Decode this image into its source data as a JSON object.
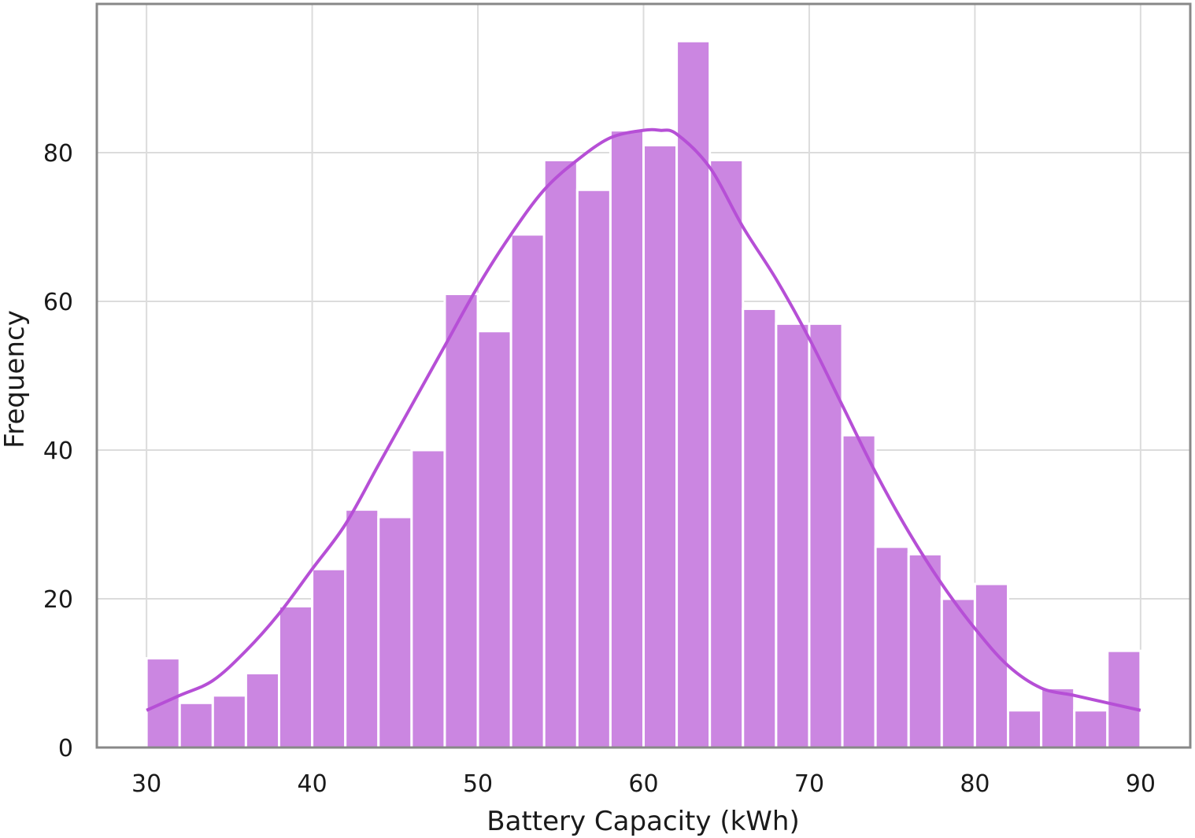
{
  "chart_data": {
    "type": "bar",
    "subtype": "histogram",
    "title": "",
    "xlabel": "Battery Capacity (kWh)",
    "ylabel": "Frequency",
    "xlim": [
      27,
      93
    ],
    "ylim": [
      0,
      100
    ],
    "x_ticks": [
      30,
      40,
      50,
      60,
      70,
      80,
      90
    ],
    "y_ticks": [
      0,
      20,
      40,
      60,
      80
    ],
    "grid": true,
    "legend": "none",
    "bin_edges": [
      30,
      32,
      34,
      36,
      38,
      40,
      42,
      44,
      46,
      48,
      50,
      52,
      54,
      56,
      58,
      60,
      62,
      64,
      66,
      68,
      70,
      72,
      74,
      76,
      78,
      80,
      82,
      84,
      86,
      88,
      90
    ],
    "values": [
      12,
      6,
      7,
      10,
      19,
      24,
      32,
      31,
      40,
      61,
      56,
      69,
      79,
      75,
      83,
      81,
      95,
      79,
      59,
      57,
      57,
      42,
      27,
      26,
      20,
      22,
      5,
      8,
      5,
      13
    ],
    "kde": {
      "x": [
        30,
        32,
        34,
        36,
        38,
        40,
        42,
        44,
        46,
        48,
        50,
        52,
        54,
        56,
        58,
        60,
        61,
        62,
        64,
        66,
        68,
        70,
        72,
        74,
        76,
        78,
        80,
        82,
        84,
        86,
        88,
        90
      ],
      "y": [
        5,
        7,
        9,
        13,
        18,
        24,
        30,
        38,
        46,
        54,
        62,
        69,
        75,
        79,
        82,
        83,
        83,
        82.5,
        78,
        70,
        63,
        55,
        46,
        37,
        29,
        22,
        16,
        11,
        8,
        7,
        6,
        5
      ]
    },
    "colors": {
      "bar": "#cb86e1",
      "kde": "#b64fd6",
      "grid": "#dcdcdc",
      "frame": "#888888"
    }
  }
}
